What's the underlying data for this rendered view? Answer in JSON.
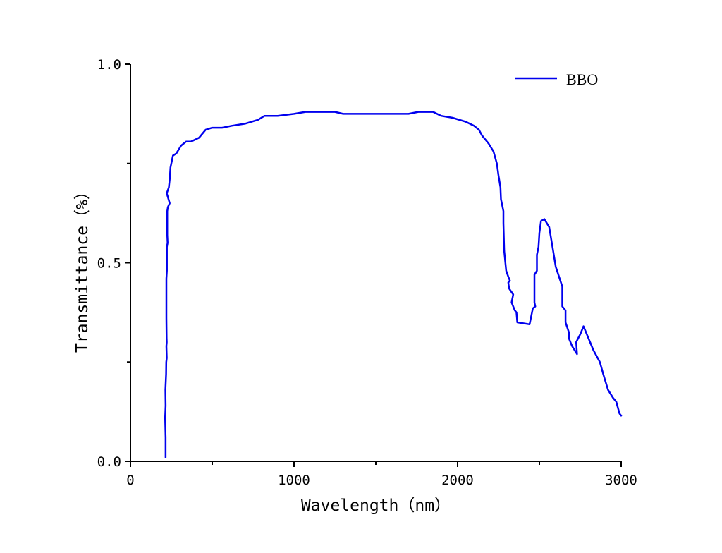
{
  "chart_data": {
    "type": "line",
    "title": "",
    "xlabel": "Wavelength（nm）",
    "ylabel": "Transmittance（%）",
    "xlim": [
      0,
      3000
    ],
    "ylim": [
      0,
      1.0
    ],
    "x_ticks": [
      "0",
      "1000",
      "2000",
      "3000"
    ],
    "y_ticks": [
      "0.0",
      "0.5",
      "1.0"
    ],
    "grid": false,
    "legend_position": "top-right",
    "series": [
      {
        "name": "BBO",
        "color": "#0000ee",
        "points": [
          [
            215,
            0.01
          ],
          [
            215,
            0.06
          ],
          [
            212,
            0.11
          ],
          [
            215,
            0.14
          ],
          [
            214,
            0.18
          ],
          [
            218,
            0.22
          ],
          [
            219,
            0.25
          ],
          [
            222,
            0.26
          ],
          [
            220,
            0.29
          ],
          [
            222,
            0.3
          ],
          [
            221,
            0.31
          ],
          [
            220,
            0.36
          ],
          [
            220,
            0.46
          ],
          [
            223,
            0.48
          ],
          [
            223,
            0.54
          ],
          [
            227,
            0.55
          ],
          [
            225,
            0.57
          ],
          [
            225,
            0.63
          ],
          [
            229,
            0.64
          ],
          [
            240,
            0.65
          ],
          [
            222,
            0.675
          ],
          [
            235,
            0.69
          ],
          [
            240,
            0.71
          ],
          [
            245,
            0.74
          ],
          [
            260,
            0.77
          ],
          [
            280,
            0.775
          ],
          [
            310,
            0.795
          ],
          [
            340,
            0.805
          ],
          [
            370,
            0.805
          ],
          [
            420,
            0.815
          ],
          [
            460,
            0.835
          ],
          [
            500,
            0.84
          ],
          [
            560,
            0.84
          ],
          [
            620,
            0.845
          ],
          [
            700,
            0.85
          ],
          [
            780,
            0.86
          ],
          [
            820,
            0.87
          ],
          [
            900,
            0.87
          ],
          [
            1000,
            0.875
          ],
          [
            1070,
            0.88
          ],
          [
            1150,
            0.88
          ],
          [
            1250,
            0.88
          ],
          [
            1300,
            0.875
          ],
          [
            1400,
            0.875
          ],
          [
            1500,
            0.875
          ],
          [
            1600,
            0.875
          ],
          [
            1700,
            0.875
          ],
          [
            1760,
            0.88
          ],
          [
            1800,
            0.88
          ],
          [
            1850,
            0.88
          ],
          [
            1900,
            0.87
          ],
          [
            1970,
            0.865
          ],
          [
            2050,
            0.855
          ],
          [
            2100,
            0.845
          ],
          [
            2130,
            0.835
          ],
          [
            2150,
            0.82
          ],
          [
            2190,
            0.8
          ],
          [
            2220,
            0.78
          ],
          [
            2240,
            0.75
          ],
          [
            2250,
            0.72
          ],
          [
            2262,
            0.69
          ],
          [
            2265,
            0.66
          ],
          [
            2280,
            0.63
          ],
          [
            2280,
            0.6
          ],
          [
            2285,
            0.53
          ],
          [
            2297,
            0.48
          ],
          [
            2310,
            0.465
          ],
          [
            2320,
            0.455
          ],
          [
            2310,
            0.45
          ],
          [
            2315,
            0.435
          ],
          [
            2340,
            0.42
          ],
          [
            2330,
            0.4
          ],
          [
            2350,
            0.38
          ],
          [
            2360,
            0.375
          ],
          [
            2365,
            0.35
          ],
          [
            2440,
            0.345
          ],
          [
            2460,
            0.385
          ],
          [
            2475,
            0.39
          ],
          [
            2470,
            0.4
          ],
          [
            2470,
            0.47
          ],
          [
            2485,
            0.48
          ],
          [
            2485,
            0.52
          ],
          [
            2495,
            0.54
          ],
          [
            2500,
            0.575
          ],
          [
            2510,
            0.605
          ],
          [
            2530,
            0.61
          ],
          [
            2560,
            0.59
          ],
          [
            2580,
            0.54
          ],
          [
            2600,
            0.49
          ],
          [
            2640,
            0.44
          ],
          [
            2640,
            0.39
          ],
          [
            2660,
            0.38
          ],
          [
            2660,
            0.35
          ],
          [
            2680,
            0.325
          ],
          [
            2680,
            0.31
          ],
          [
            2700,
            0.29
          ],
          [
            2730,
            0.27
          ],
          [
            2725,
            0.3
          ],
          [
            2750,
            0.32
          ],
          [
            2770,
            0.34
          ],
          [
            2800,
            0.31
          ],
          [
            2830,
            0.28
          ],
          [
            2870,
            0.25
          ],
          [
            2890,
            0.22
          ],
          [
            2920,
            0.18
          ],
          [
            2950,
            0.16
          ],
          [
            2970,
            0.15
          ],
          [
            2990,
            0.12
          ],
          [
            3000,
            0.115
          ]
        ]
      }
    ]
  }
}
